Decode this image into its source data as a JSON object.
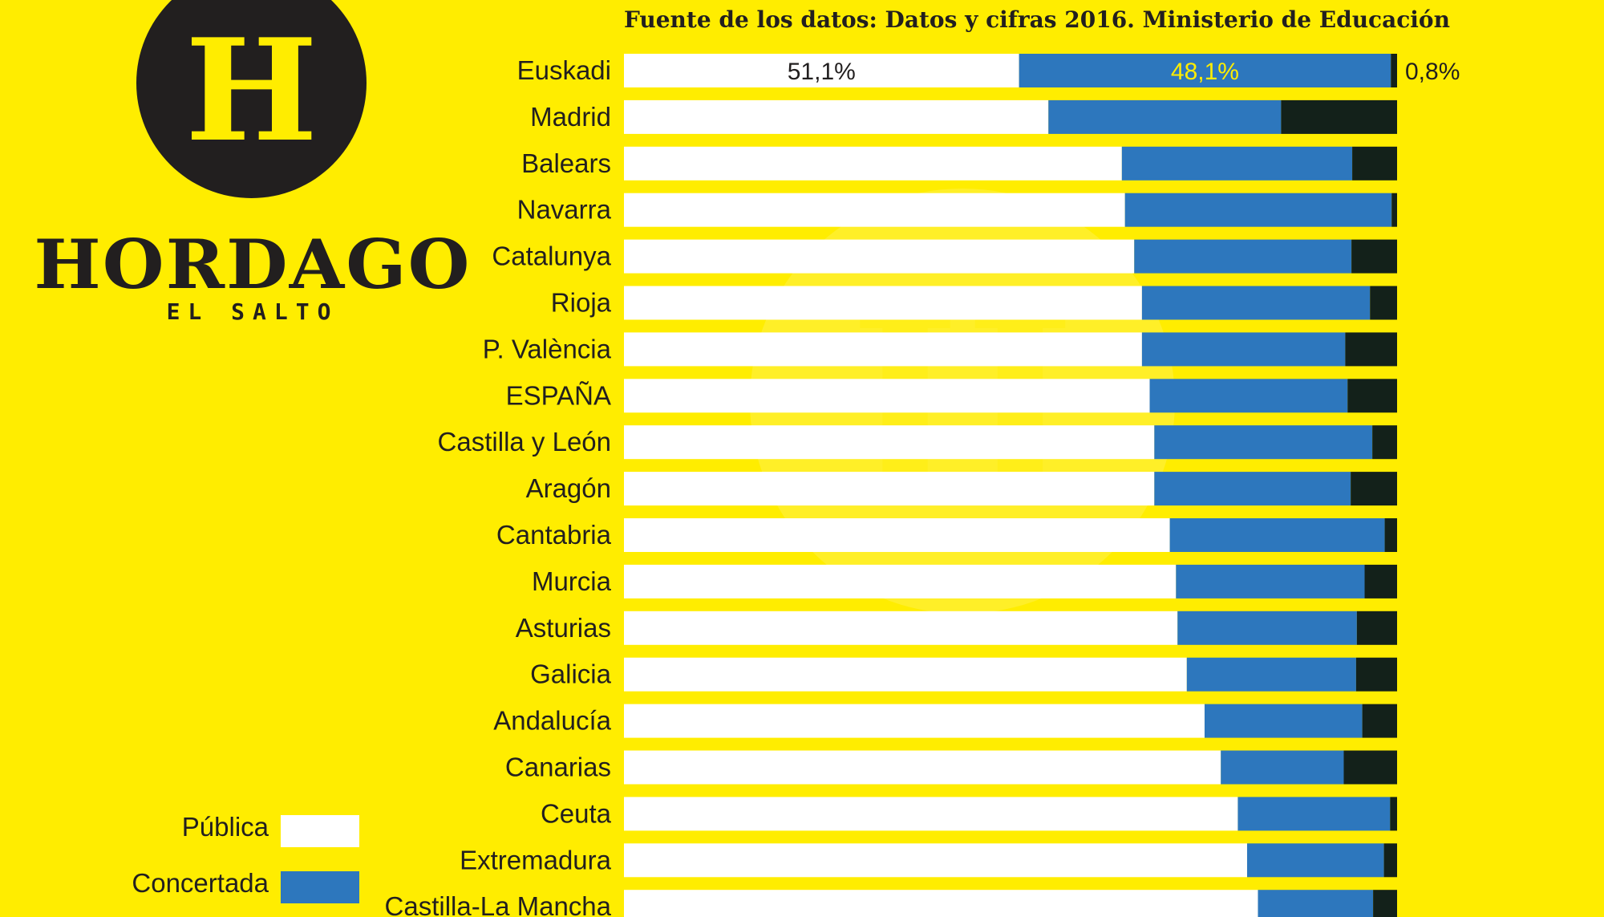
{
  "brand": {
    "logo_letter": "H",
    "name": "HORDAGO",
    "sub": "EL SALTO"
  },
  "subtitle": "Fuente de los datos: Datos y cifras 2016. Ministerio de Educación",
  "colors": {
    "background": "#ffed00",
    "publica": "#ffffff",
    "concertada": "#2d77bd",
    "privada": "#13211a",
    "text": "#221f1f",
    "accent_label": "#ffed00"
  },
  "legend": [
    {
      "label": "Pública",
      "series": "publica"
    },
    {
      "label": "Concertada",
      "series": "concertada"
    }
  ],
  "chart_data": {
    "type": "bar",
    "orientation": "horizontal",
    "stacked": true,
    "xlim": [
      0,
      100
    ],
    "categories": [
      "Euskadi",
      "Madrid",
      "Balears",
      "Navarra",
      "Catalunya",
      "Rioja",
      "P. València",
      "ESPAÑA",
      "Castilla y León",
      "Aragón",
      "Cantabria",
      "Murcia",
      "Asturias",
      "Galicia",
      "Andalucía",
      "Canarias",
      "Ceuta",
      "Extremadura",
      "Castilla-La Mancha"
    ],
    "series": [
      {
        "name": "Pública",
        "values": [
          51.1,
          54.9,
          64.4,
          64.8,
          66.0,
          67.0,
          67.0,
          68.0,
          68.6,
          68.6,
          70.6,
          71.4,
          71.6,
          72.8,
          75.1,
          77.2,
          79.4,
          80.6,
          82.0
        ]
      },
      {
        "name": "Concertada",
        "values": [
          48.1,
          30.1,
          29.8,
          34.5,
          28.1,
          29.5,
          26.3,
          25.6,
          28.2,
          25.4,
          27.8,
          24.4,
          23.2,
          21.9,
          20.4,
          15.9,
          19.7,
          17.7,
          14.9
        ]
      },
      {
        "values": [
          0.8,
          15.0,
          5.8,
          0.7,
          5.9,
          3.5,
          6.7,
          6.4,
          3.2,
          6.0,
          1.6,
          4.2,
          5.2,
          5.3,
          4.5,
          6.9,
          0.9,
          1.7,
          3.1
        ]
      }
    ],
    "data_labels": [
      {
        "category": "Euskadi",
        "series": 0,
        "text": "51,1%"
      },
      {
        "category": "Euskadi",
        "series": 1,
        "text": "48,1%"
      },
      {
        "category": "Euskadi",
        "series": 2,
        "text": "0,8%"
      }
    ]
  }
}
